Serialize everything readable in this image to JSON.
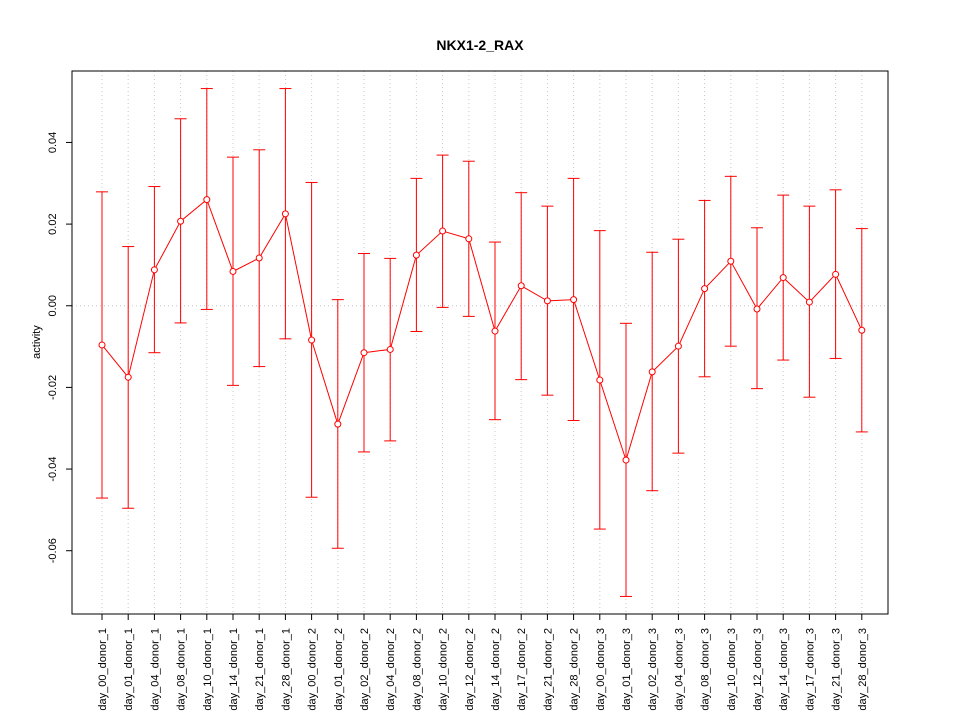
{
  "chart_data": {
    "type": "line",
    "title": "NKX1-2_RAX",
    "xlabel": "",
    "ylabel": "activity",
    "ylim": [
      -0.0755,
      0.0575
    ],
    "yticks": [
      -0.06,
      -0.04,
      -0.02,
      0.0,
      0.02,
      0.04
    ],
    "ytick_labels": [
      "-0.06",
      "-0.04",
      "-0.02",
      "0.00",
      "0.02",
      "0.04"
    ],
    "grid": true,
    "color": "#ff0000",
    "categories": [
      "day_00_donor_1",
      "day_01_donor_1",
      "day_04_donor_1",
      "day_08_donor_1",
      "day_10_donor_1",
      "day_14_donor_1",
      "day_21_donor_1",
      "day_28_donor_1",
      "day_00_donor_2",
      "day_01_donor_2",
      "day_02_donor_2",
      "day_04_donor_2",
      "day_08_donor_2",
      "day_10_donor_2",
      "day_12_donor_2",
      "day_14_donor_2",
      "day_17_donor_2",
      "day_21_donor_2",
      "day_28_donor_2",
      "day_00_donor_3",
      "day_01_donor_3",
      "day_02_donor_3",
      "day_04_donor_3",
      "day_08_donor_3",
      "day_10_donor_3",
      "day_12_donor_3",
      "day_14_donor_3",
      "day_17_donor_3",
      "day_21_donor_3",
      "day_28_donor_3"
    ],
    "values": [
      -0.0096,
      -0.0175,
      0.0088,
      0.0207,
      0.026,
      0.0084,
      0.0117,
      0.0225,
      -0.0084,
      -0.029,
      -0.0115,
      -0.0107,
      0.0124,
      0.0183,
      0.0164,
      -0.0062,
      0.0049,
      0.0012,
      0.0015,
      -0.0182,
      -0.0378,
      -0.0162,
      -0.0099,
      0.0042,
      0.0109,
      -0.0008,
      0.0069,
      0.0009,
      0.0077,
      -0.006
    ],
    "upper": [
      0.0279,
      0.0145,
      0.0292,
      0.0458,
      0.0532,
      0.0364,
      0.0382,
      0.0532,
      0.0302,
      0.0015,
      0.0128,
      0.0116,
      0.0312,
      0.0369,
      0.0354,
      0.0156,
      0.0277,
      0.0244,
      0.0312,
      0.0184,
      -0.0043,
      0.0131,
      0.0163,
      0.0258,
      0.0317,
      0.0191,
      0.0271,
      0.0244,
      0.0284,
      0.0189
    ],
    "lower": [
      -0.0471,
      -0.0496,
      -0.0115,
      -0.0042,
      -0.0009,
      -0.0195,
      -0.0149,
      -0.0081,
      -0.0469,
      -0.0594,
      -0.0358,
      -0.0331,
      -0.0063,
      -0.0004,
      -0.0026,
      -0.0279,
      -0.0181,
      -0.0219,
      -0.0281,
      -0.0547,
      -0.0712,
      -0.0453,
      -0.0361,
      -0.0174,
      -0.0099,
      -0.0203,
      -0.0133,
      -0.0224,
      -0.0129,
      -0.0309
    ]
  }
}
